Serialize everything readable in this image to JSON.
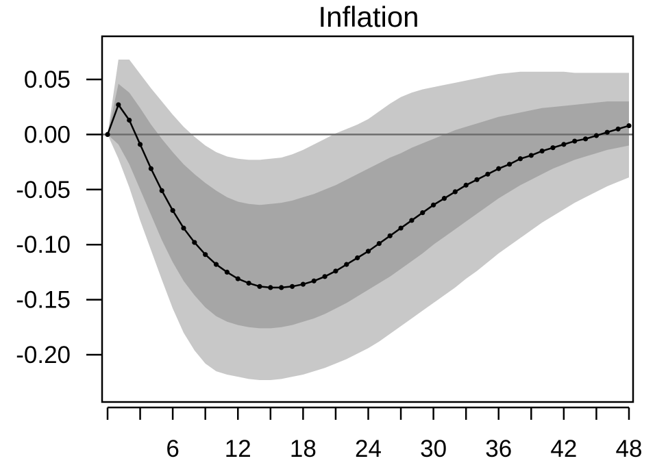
{
  "chart_data": {
    "type": "line",
    "title": "Inflation",
    "xlabel": "",
    "ylabel": "",
    "xlim": [
      0,
      48
    ],
    "ylim": [
      -0.24,
      0.09
    ],
    "x_ticks": [
      0,
      3,
      6,
      9,
      12,
      15,
      18,
      21,
      24,
      27,
      30,
      33,
      36,
      39,
      42,
      45,
      48
    ],
    "x_tick_labels": [
      "6",
      "12",
      "18",
      "24",
      "30",
      "36",
      "42",
      "48"
    ],
    "x_tick_label_values": [
      6,
      12,
      18,
      24,
      30,
      36,
      42,
      48
    ],
    "y_ticks": [
      0.05,
      0.0,
      -0.05,
      -0.1,
      -0.15,
      -0.2
    ],
    "y_tick_labels": [
      "0.05",
      "0.00",
      "-0.05",
      "-0.10",
      "-0.15",
      "-0.20"
    ],
    "zero_line": 0,
    "grid": false,
    "colors": {
      "outer_band": "#c8c8c8",
      "inner_band": "#a6a6a6",
      "line": "#000000",
      "zero_line": "#6e6e6e"
    },
    "x": [
      0,
      1,
      2,
      3,
      4,
      5,
      6,
      7,
      8,
      9,
      10,
      11,
      12,
      13,
      14,
      15,
      16,
      17,
      18,
      19,
      20,
      21,
      22,
      23,
      24,
      25,
      26,
      27,
      28,
      29,
      30,
      31,
      32,
      33,
      34,
      35,
      36,
      37,
      38,
      39,
      40,
      41,
      42,
      43,
      44,
      45,
      46,
      47,
      48
    ],
    "series": [
      {
        "values": [
          0.0,
          0.027,
          0.013,
          -0.009,
          -0.031,
          -0.051,
          -0.069,
          -0.085,
          -0.098,
          -0.109,
          -0.118,
          -0.125,
          -0.131,
          -0.135,
          -0.138,
          -0.139,
          -0.139,
          -0.138,
          -0.136,
          -0.133,
          -0.129,
          -0.124,
          -0.118,
          -0.112,
          -0.106,
          -0.099,
          -0.092,
          -0.085,
          -0.078,
          -0.071,
          -0.064,
          -0.058,
          -0.052,
          -0.046,
          -0.041,
          -0.036,
          -0.031,
          -0.027,
          -0.022,
          -0.019,
          -0.015,
          -0.012,
          -0.009,
          -0.006,
          -0.004,
          -0.001,
          0.002,
          0.005,
          0.008
        ]
      }
    ],
    "bands": [
      {
        "level": "outer",
        "lower": [
          0.0,
          -0.022,
          -0.048,
          -0.078,
          -0.105,
          -0.132,
          -0.158,
          -0.18,
          -0.196,
          -0.208,
          -0.215,
          -0.218,
          -0.22,
          -0.222,
          -0.223,
          -0.223,
          -0.222,
          -0.22,
          -0.218,
          -0.215,
          -0.212,
          -0.208,
          -0.204,
          -0.199,
          -0.194,
          -0.188,
          -0.181,
          -0.174,
          -0.167,
          -0.16,
          -0.153,
          -0.146,
          -0.139,
          -0.131,
          -0.124,
          -0.116,
          -0.108,
          -0.101,
          -0.094,
          -0.087,
          -0.08,
          -0.074,
          -0.068,
          -0.062,
          -0.057,
          -0.052,
          -0.047,
          -0.043,
          -0.039
        ],
        "upper": [
          0.0,
          0.068,
          0.068,
          0.055,
          0.042,
          0.03,
          0.018,
          0.007,
          -0.002,
          -0.01,
          -0.016,
          -0.02,
          -0.022,
          -0.023,
          -0.023,
          -0.022,
          -0.021,
          -0.018,
          -0.014,
          -0.009,
          -0.004,
          0.001,
          0.005,
          0.009,
          0.014,
          0.021,
          0.028,
          0.034,
          0.038,
          0.041,
          0.043,
          0.045,
          0.047,
          0.049,
          0.051,
          0.053,
          0.055,
          0.056,
          0.057,
          0.057,
          0.057,
          0.057,
          0.057,
          0.056,
          0.056,
          0.056,
          0.056,
          0.056,
          0.056
        ]
      },
      {
        "level": "inner",
        "lower": [
          0.0,
          -0.009,
          -0.027,
          -0.05,
          -0.073,
          -0.096,
          -0.116,
          -0.133,
          -0.146,
          -0.157,
          -0.165,
          -0.17,
          -0.173,
          -0.175,
          -0.176,
          -0.176,
          -0.175,
          -0.173,
          -0.17,
          -0.167,
          -0.163,
          -0.158,
          -0.153,
          -0.147,
          -0.141,
          -0.135,
          -0.129,
          -0.122,
          -0.115,
          -0.108,
          -0.1,
          -0.093,
          -0.086,
          -0.079,
          -0.072,
          -0.065,
          -0.058,
          -0.052,
          -0.046,
          -0.041,
          -0.036,
          -0.031,
          -0.027,
          -0.023,
          -0.02,
          -0.017,
          -0.014,
          -0.012,
          -0.01
        ],
        "upper": [
          0.0,
          0.046,
          0.038,
          0.024,
          0.009,
          -0.004,
          -0.016,
          -0.027,
          -0.036,
          -0.044,
          -0.051,
          -0.057,
          -0.061,
          -0.063,
          -0.064,
          -0.063,
          -0.062,
          -0.06,
          -0.057,
          -0.054,
          -0.05,
          -0.046,
          -0.041,
          -0.036,
          -0.031,
          -0.026,
          -0.021,
          -0.017,
          -0.012,
          -0.008,
          -0.004,
          0.0,
          0.004,
          0.007,
          0.01,
          0.013,
          0.016,
          0.018,
          0.02,
          0.022,
          0.024,
          0.025,
          0.026,
          0.027,
          0.028,
          0.029,
          0.03,
          0.03,
          0.03
        ]
      }
    ]
  }
}
